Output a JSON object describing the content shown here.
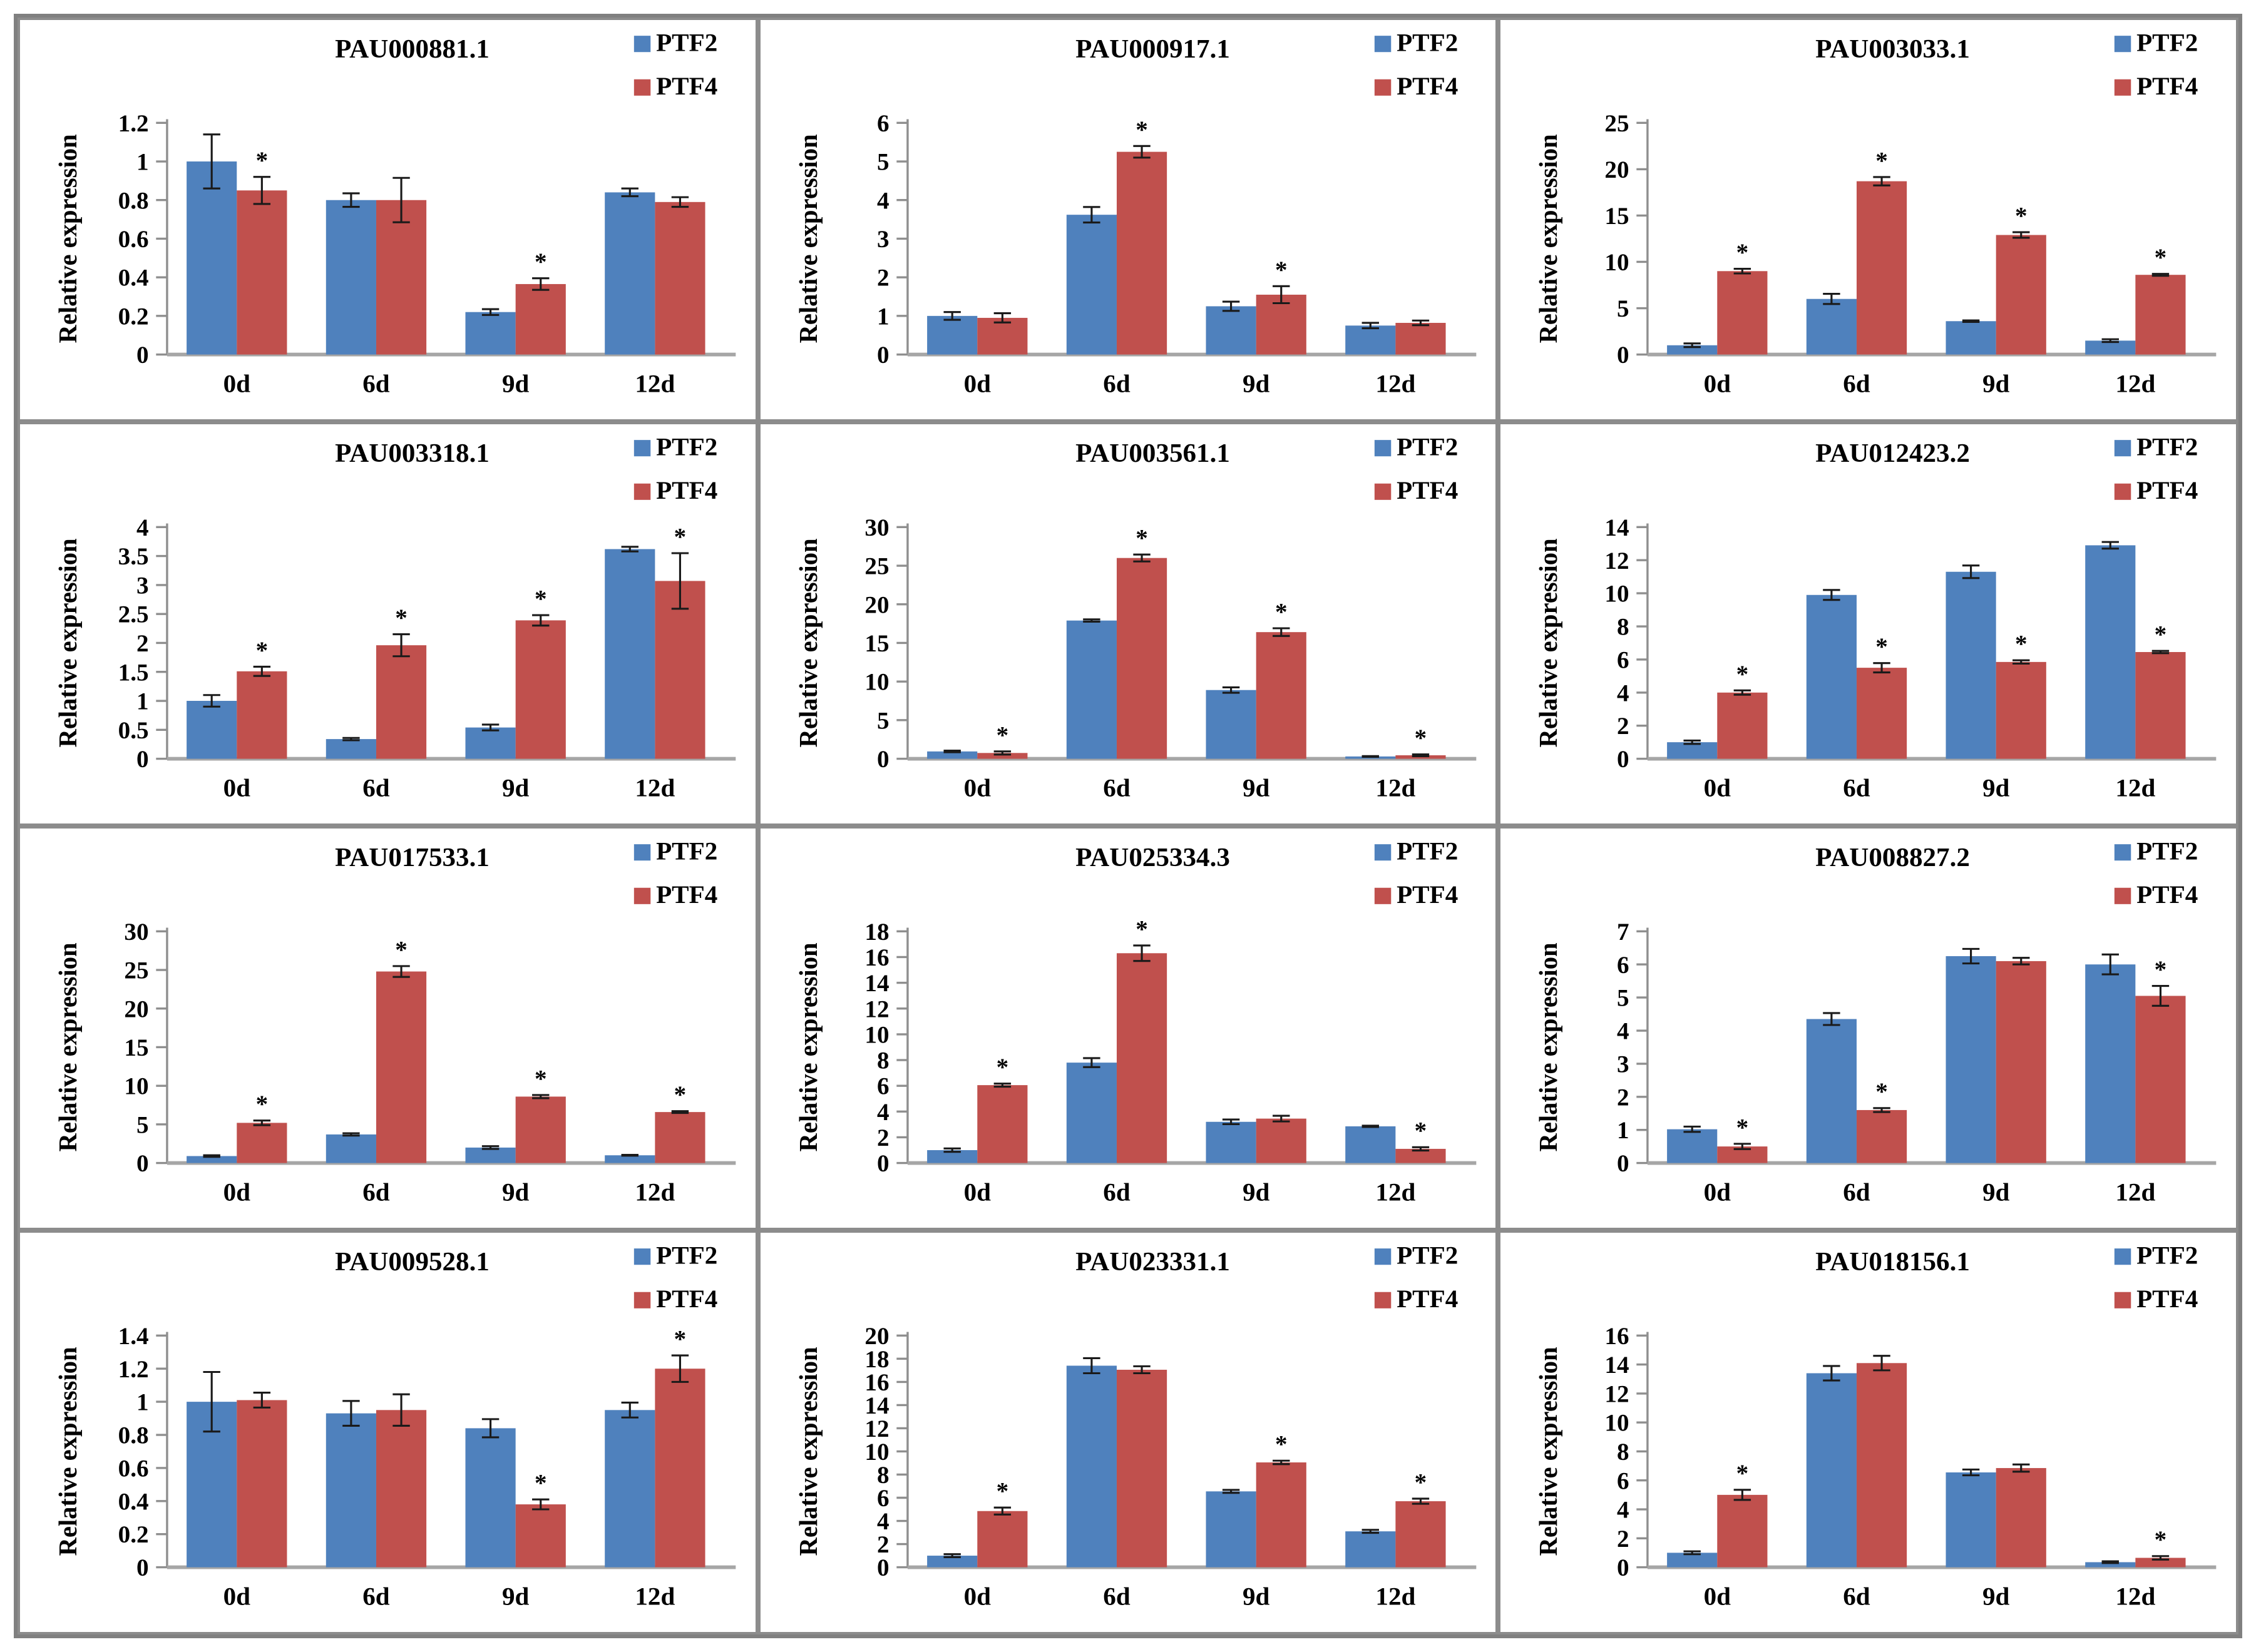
{
  "legend": {
    "items": [
      {
        "label": "PTF2",
        "color": "#4F81BD"
      },
      {
        "label": "PTF4",
        "color": "#C0504D"
      }
    ],
    "position": "top-right"
  },
  "axis": {
    "ylabel": "Relative expression",
    "categories": [
      "0d",
      "6d",
      "9d",
      "12d"
    ]
  },
  "styles": {
    "series_blue": "#4F81BD",
    "series_red": "#C0504D",
    "grid_border": "#808080",
    "axis_color": "#8f8f8f",
    "baseline_color": "#a6a6a6",
    "error_color": "#1a1a1a",
    "text_color": "#000000"
  },
  "chart_data": [
    {
      "type": "bar",
      "title": "PAU000881.1",
      "ylabel": "Relative expression",
      "categories": [
        "0d",
        "6d",
        "9d",
        "12d"
      ],
      "ylim": [
        0,
        1.2
      ],
      "ytick_step": 0.2,
      "grid": false,
      "legend_position": "top-right",
      "series": [
        {
          "name": "PTF2",
          "color": "#4F81BD",
          "values": [
            1.0,
            0.8,
            0.22,
            0.84
          ],
          "errors": [
            0.14,
            0.035,
            0.015,
            0.02
          ],
          "sig": [
            false,
            false,
            false,
            false
          ]
        },
        {
          "name": "PTF4",
          "color": "#C0504D",
          "values": [
            0.85,
            0.8,
            0.365,
            0.79
          ],
          "errors": [
            0.07,
            0.115,
            0.03,
            0.025
          ],
          "sig": [
            true,
            false,
            true,
            false
          ]
        }
      ]
    },
    {
      "type": "bar",
      "title": "PAU000917.1",
      "ylabel": "Relative expression",
      "categories": [
        "0d",
        "6d",
        "9d",
        "12d"
      ],
      "ylim": [
        0,
        6
      ],
      "ytick_step": 1,
      "grid": false,
      "legend_position": "top-right",
      "series": [
        {
          "name": "PTF2",
          "color": "#4F81BD",
          "values": [
            1.0,
            3.62,
            1.25,
            0.75
          ],
          "errors": [
            0.1,
            0.2,
            0.12,
            0.07
          ],
          "sig": [
            false,
            false,
            false,
            false
          ]
        },
        {
          "name": "PTF4",
          "color": "#C0504D",
          "values": [
            0.95,
            5.25,
            1.55,
            0.82
          ],
          "errors": [
            0.12,
            0.15,
            0.22,
            0.06
          ],
          "sig": [
            false,
            true,
            true,
            false
          ]
        }
      ]
    },
    {
      "type": "bar",
      "title": "PAU003033.1",
      "ylabel": "Relative expression",
      "categories": [
        "0d",
        "6d",
        "9d",
        "12d"
      ],
      "ylim": [
        0,
        25
      ],
      "ytick_step": 5,
      "grid": false,
      "legend_position": "top-right",
      "series": [
        {
          "name": "PTF2",
          "color": "#4F81BD",
          "values": [
            1.0,
            6.0,
            3.6,
            1.5
          ],
          "errors": [
            0.2,
            0.55,
            0.08,
            0.15
          ],
          "sig": [
            false,
            false,
            false,
            false
          ]
        },
        {
          "name": "PTF4",
          "color": "#C0504D",
          "values": [
            9.0,
            18.7,
            12.9,
            8.6
          ],
          "errors": [
            0.25,
            0.45,
            0.3,
            0.1
          ],
          "sig": [
            true,
            true,
            true,
            true
          ]
        }
      ]
    },
    {
      "type": "bar",
      "title": "PAU003318.1",
      "ylabel": "Relative expression",
      "categories": [
        "0d",
        "6d",
        "9d",
        "12d"
      ],
      "ylim": [
        0,
        4
      ],
      "ytick_step": 0.5,
      "grid": false,
      "legend_position": "top-right",
      "series": [
        {
          "name": "PTF2",
          "color": "#4F81BD",
          "values": [
            1.0,
            0.34,
            0.54,
            3.62
          ],
          "errors": [
            0.1,
            0.02,
            0.05,
            0.04
          ],
          "sig": [
            false,
            false,
            false,
            false
          ]
        },
        {
          "name": "PTF4",
          "color": "#C0504D",
          "values": [
            1.51,
            1.96,
            2.39,
            3.07
          ],
          "errors": [
            0.08,
            0.19,
            0.09,
            0.48
          ],
          "sig": [
            true,
            true,
            true,
            true
          ]
        }
      ]
    },
    {
      "type": "bar",
      "title": "PAU003561.1",
      "ylabel": "Relative expression",
      "categories": [
        "0d",
        "6d",
        "9d",
        "12d"
      ],
      "ylim": [
        0,
        30
      ],
      "ytick_step": 5,
      "grid": false,
      "legend_position": "top-right",
      "series": [
        {
          "name": "PTF2",
          "color": "#4F81BD",
          "values": [
            0.95,
            17.9,
            8.9,
            0.3
          ],
          "errors": [
            0.1,
            0.15,
            0.35,
            0.05
          ],
          "sig": [
            false,
            false,
            false,
            false
          ]
        },
        {
          "name": "PTF4",
          "color": "#C0504D",
          "values": [
            0.75,
            26.0,
            16.4,
            0.45
          ],
          "errors": [
            0.2,
            0.45,
            0.5,
            0.12
          ],
          "sig": [
            true,
            true,
            true,
            true
          ]
        }
      ]
    },
    {
      "type": "bar",
      "title": "PAU012423.2",
      "ylabel": "Relative expression",
      "categories": [
        "0d",
        "6d",
        "9d",
        "12d"
      ],
      "ylim": [
        0,
        14
      ],
      "ytick_step": 2,
      "grid": false,
      "legend_position": "top-right",
      "series": [
        {
          "name": "PTF2",
          "color": "#4F81BD",
          "values": [
            1.0,
            9.9,
            11.3,
            12.9
          ],
          "errors": [
            0.1,
            0.3,
            0.38,
            0.2
          ],
          "sig": [
            false,
            false,
            false,
            false
          ]
        },
        {
          "name": "PTF4",
          "color": "#C0504D",
          "values": [
            4.0,
            5.5,
            5.85,
            6.45
          ],
          "errors": [
            0.13,
            0.28,
            0.1,
            0.07
          ],
          "sig": [
            true,
            true,
            true,
            true
          ]
        }
      ]
    },
    {
      "type": "bar",
      "title": "PAU017533.1",
      "ylabel": "Relative expression",
      "categories": [
        "0d",
        "6d",
        "9d",
        "12d"
      ],
      "ylim": [
        0,
        30
      ],
      "ytick_step": 5,
      "grid": false,
      "legend_position": "top-right",
      "series": [
        {
          "name": "PTF2",
          "color": "#4F81BD",
          "values": [
            0.9,
            3.7,
            2.0,
            1.0
          ],
          "errors": [
            0.1,
            0.15,
            0.18,
            0.05
          ],
          "sig": [
            false,
            false,
            false,
            false
          ]
        },
        {
          "name": "PTF4",
          "color": "#C0504D",
          "values": [
            5.2,
            24.8,
            8.6,
            6.6
          ],
          "errors": [
            0.3,
            0.7,
            0.2,
            0.12
          ],
          "sig": [
            true,
            true,
            true,
            true
          ]
        }
      ]
    },
    {
      "type": "bar",
      "title": "PAU025334.3",
      "ylabel": "Relative expression",
      "categories": [
        "0d",
        "6d",
        "9d",
        "12d"
      ],
      "ylim": [
        0,
        18
      ],
      "ytick_step": 2,
      "grid": false,
      "legend_position": "top-right",
      "series": [
        {
          "name": "PTF2",
          "color": "#4F81BD",
          "values": [
            1.0,
            7.8,
            3.2,
            2.85
          ],
          "errors": [
            0.13,
            0.35,
            0.18,
            0.05
          ],
          "sig": [
            false,
            false,
            false,
            false
          ]
        },
        {
          "name": "PTF4",
          "color": "#C0504D",
          "values": [
            6.05,
            16.3,
            3.45,
            1.1
          ],
          "errors": [
            0.12,
            0.6,
            0.22,
            0.13
          ],
          "sig": [
            true,
            true,
            false,
            true
          ]
        }
      ]
    },
    {
      "type": "bar",
      "title": "PAU008827.2",
      "ylabel": "Relative expression",
      "categories": [
        "0d",
        "6d",
        "9d",
        "12d"
      ],
      "ylim": [
        0,
        7
      ],
      "ytick_step": 1,
      "grid": false,
      "legend_position": "top-right",
      "series": [
        {
          "name": "PTF2",
          "color": "#4F81BD",
          "values": [
            1.02,
            4.35,
            6.25,
            6.0
          ],
          "errors": [
            0.08,
            0.18,
            0.22,
            0.3
          ],
          "sig": [
            false,
            false,
            false,
            false
          ]
        },
        {
          "name": "PTF4",
          "color": "#C0504D",
          "values": [
            0.5,
            1.6,
            6.1,
            5.05
          ],
          "errors": [
            0.08,
            0.06,
            0.1,
            0.3
          ],
          "sig": [
            true,
            true,
            false,
            true
          ]
        }
      ]
    },
    {
      "type": "bar",
      "title": "PAU009528.1",
      "ylabel": "Relative expression",
      "categories": [
        "0d",
        "6d",
        "9d",
        "12d"
      ],
      "ylim": [
        0,
        1.4
      ],
      "ytick_step": 0.2,
      "grid": false,
      "legend_position": "top-right",
      "series": [
        {
          "name": "PTF2",
          "color": "#4F81BD",
          "values": [
            1.0,
            0.93,
            0.84,
            0.95
          ],
          "errors": [
            0.18,
            0.075,
            0.055,
            0.045
          ],
          "sig": [
            false,
            false,
            false,
            false
          ]
        },
        {
          "name": "PTF4",
          "color": "#C0504D",
          "values": [
            1.01,
            0.95,
            0.38,
            1.2
          ],
          "errors": [
            0.045,
            0.095,
            0.03,
            0.08
          ],
          "sig": [
            false,
            false,
            true,
            true
          ]
        }
      ]
    },
    {
      "type": "bar",
      "title": "PAU023331.1",
      "ylabel": "Relative expression",
      "categories": [
        "0d",
        "6d",
        "9d",
        "12d"
      ],
      "ylim": [
        0,
        20
      ],
      "ytick_step": 2,
      "grid": false,
      "legend_position": "top-right",
      "series": [
        {
          "name": "PTF2",
          "color": "#4F81BD",
          "values": [
            1.0,
            17.4,
            6.55,
            3.1
          ],
          "errors": [
            0.13,
            0.65,
            0.13,
            0.13
          ],
          "sig": [
            false,
            false,
            false,
            false
          ]
        },
        {
          "name": "PTF4",
          "color": "#C0504D",
          "values": [
            4.85,
            17.05,
            9.05,
            5.7
          ],
          "errors": [
            0.3,
            0.3,
            0.15,
            0.22
          ],
          "sig": [
            true,
            false,
            true,
            true
          ]
        }
      ]
    },
    {
      "type": "bar",
      "title": "PAU018156.1",
      "ylabel": "Relative expression",
      "categories": [
        "0d",
        "6d",
        "9d",
        "12d"
      ],
      "ylim": [
        0,
        16
      ],
      "ytick_step": 2,
      "grid": false,
      "legend_position": "top-right",
      "series": [
        {
          "name": "PTF2",
          "color": "#4F81BD",
          "values": [
            1.0,
            13.4,
            6.55,
            0.35
          ],
          "errors": [
            0.1,
            0.5,
            0.2,
            0.06
          ],
          "sig": [
            false,
            false,
            false,
            false
          ]
        },
        {
          "name": "PTF4",
          "color": "#C0504D",
          "values": [
            5.0,
            14.1,
            6.85,
            0.65
          ],
          "errors": [
            0.35,
            0.5,
            0.25,
            0.12
          ],
          "sig": [
            true,
            false,
            false,
            true
          ]
        }
      ]
    }
  ]
}
